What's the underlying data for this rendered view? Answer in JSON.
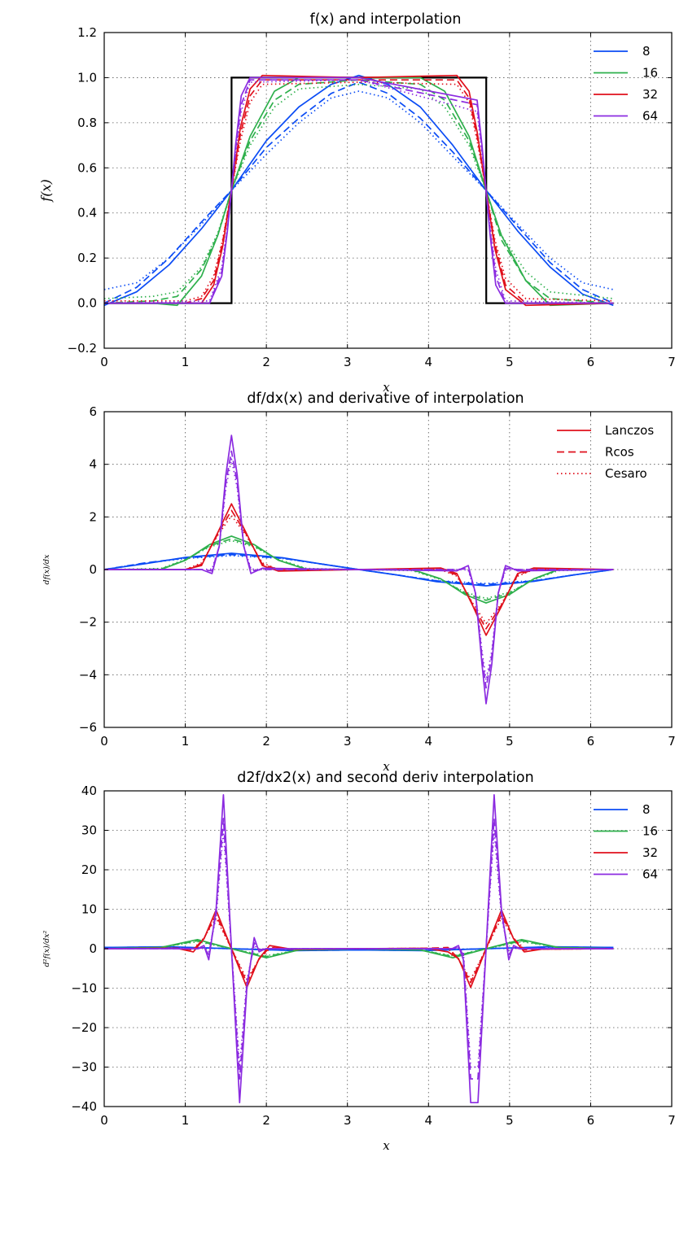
{
  "chart_data": [
    {
      "type": "line",
      "title": "f(x) and interpolation",
      "xlabel": "x",
      "ylabel": "f(x)",
      "xlim": [
        0,
        7
      ],
      "ylim": [
        -0.2,
        1.2
      ],
      "xticks": [
        "0",
        "1",
        "2",
        "3",
        "4",
        "5",
        "6",
        "7"
      ],
      "yticks": [
        "−0.2",
        "0.0",
        "0.2",
        "0.4",
        "0.6",
        "0.8",
        "1.0",
        "1.2"
      ],
      "grid": true,
      "legend": {
        "position": "top-right",
        "entries": [
          "8",
          "16",
          "32",
          "64"
        ]
      },
      "exact": {
        "color": "#000000",
        "x": [
          0,
          1.571,
          1.571,
          4.712,
          4.712,
          6.283
        ],
        "y": [
          0,
          0,
          1,
          1,
          0,
          0
        ]
      },
      "series": [
        {
          "name": "8",
          "color": "#0b4cf5",
          "x": [
            0,
            0.4,
            0.8,
            1.2,
            1.57,
            2.0,
            2.4,
            2.8,
            3.14,
            3.5,
            3.9,
            4.3,
            4.71,
            5.1,
            5.5,
            5.9,
            6.28
          ],
          "lanczos": [
            -0.01,
            0.05,
            0.17,
            0.33,
            0.5,
            0.72,
            0.87,
            0.97,
            1.01,
            0.97,
            0.87,
            0.7,
            0.5,
            0.32,
            0.16,
            0.04,
            -0.01
          ],
          "rcos": [
            0.0,
            0.07,
            0.2,
            0.36,
            0.5,
            0.69,
            0.82,
            0.93,
            0.98,
            0.93,
            0.82,
            0.67,
            0.5,
            0.34,
            0.18,
            0.06,
            0.0
          ],
          "cesaro": [
            0.06,
            0.09,
            0.2,
            0.35,
            0.5,
            0.66,
            0.8,
            0.91,
            0.94,
            0.91,
            0.8,
            0.65,
            0.5,
            0.35,
            0.2,
            0.09,
            0.06
          ]
        },
        {
          "name": "16",
          "color": "#2eb04c",
          "x": [
            0,
            0.6,
            0.9,
            1.2,
            1.4,
            1.57,
            1.8,
            2.1,
            2.4,
            3.14,
            3.9,
            4.2,
            4.5,
            4.71,
            4.9,
            5.2,
            5.5,
            6.28
          ],
          "lanczos": [
            0.0,
            0.0,
            -0.01,
            0.12,
            0.3,
            0.5,
            0.74,
            0.94,
            1.0,
            1.0,
            1.0,
            0.94,
            0.74,
            0.5,
            0.3,
            0.1,
            -0.01,
            0.0
          ],
          "rcos": [
            0.0,
            0.01,
            0.03,
            0.15,
            0.3,
            0.5,
            0.72,
            0.9,
            0.97,
            0.99,
            0.97,
            0.9,
            0.72,
            0.5,
            0.28,
            0.1,
            0.02,
            0.0
          ],
          "cesaro": [
            0.02,
            0.03,
            0.05,
            0.16,
            0.31,
            0.5,
            0.7,
            0.87,
            0.95,
            0.97,
            0.95,
            0.87,
            0.7,
            0.5,
            0.3,
            0.14,
            0.05,
            0.02
          ]
        },
        {
          "name": "32",
          "color": "#e0101c",
          "x": [
            0,
            1.0,
            1.2,
            1.35,
            1.46,
            1.57,
            1.68,
            1.8,
            1.95,
            3.14,
            4.35,
            4.5,
            4.6,
            4.71,
            4.82,
            4.95,
            5.2,
            6.28
          ],
          "lanczos": [
            0.0,
            0.0,
            0.0,
            0.08,
            0.25,
            0.5,
            0.78,
            0.95,
            1.01,
            1.0,
            1.01,
            0.94,
            0.76,
            0.5,
            0.24,
            0.06,
            -0.01,
            0.0
          ],
          "rcos": [
            0.0,
            0.0,
            0.02,
            0.1,
            0.27,
            0.5,
            0.75,
            0.92,
            0.99,
            0.99,
            0.99,
            0.91,
            0.74,
            0.5,
            0.26,
            0.08,
            0.0,
            0.0
          ],
          "cesaro": [
            0.01,
            0.01,
            0.03,
            0.12,
            0.28,
            0.5,
            0.72,
            0.89,
            0.97,
            0.98,
            0.97,
            0.89,
            0.72,
            0.5,
            0.28,
            0.11,
            0.02,
            0.01
          ]
        },
        {
          "name": "64",
          "color": "#8b2be0",
          "x": [
            0,
            1.3,
            1.45,
            1.52,
            1.57,
            1.62,
            1.69,
            1.8,
            3.14,
            4.6,
            4.66,
            4.71,
            4.76,
            4.83,
            4.95,
            6.28
          ],
          "lanczos": [
            0.0,
            0.0,
            0.12,
            0.32,
            0.5,
            0.7,
            0.92,
            1.0,
            1.0,
            0.9,
            0.7,
            0.5,
            0.3,
            0.08,
            0.0,
            0.0
          ],
          "rcos": [
            0.0,
            0.0,
            0.14,
            0.33,
            0.5,
            0.68,
            0.88,
            0.99,
            0.99,
            0.88,
            0.68,
            0.5,
            0.32,
            0.12,
            0.0,
            0.0
          ],
          "cesaro": [
            0.0,
            0.01,
            0.16,
            0.34,
            0.5,
            0.66,
            0.85,
            0.98,
            0.99,
            0.85,
            0.66,
            0.5,
            0.34,
            0.15,
            0.01,
            0.0
          ]
        }
      ]
    },
    {
      "type": "line",
      "title": "df/dx(x) and derivative of interpolation",
      "xlabel": "x",
      "ylabel": "df(x)/dx",
      "xlim": [
        0,
        7
      ],
      "ylim": [
        -6,
        6
      ],
      "xticks": [
        "0",
        "1",
        "2",
        "3",
        "4",
        "5",
        "6",
        "7"
      ],
      "yticks": [
        "−6",
        "−4",
        "−2",
        "0",
        "2",
        "4",
        "6"
      ],
      "grid": true,
      "legend": {
        "position": "top-right",
        "entries": [
          "Lanczos",
          "Rcos",
          "Cesaro"
        ],
        "color": "#e0101c"
      },
      "series": [
        {
          "name": "8",
          "color": "#0b4cf5",
          "x": [
            0,
            0.5,
            1.0,
            1.57,
            2.2,
            2.7,
            3.14,
            3.6,
            4.1,
            4.71,
            5.3,
            5.8,
            6.28
          ],
          "lanczos": [
            0.0,
            0.22,
            0.46,
            0.62,
            0.45,
            0.2,
            0.0,
            -0.2,
            -0.46,
            -0.62,
            -0.45,
            -0.2,
            0.0
          ],
          "rcos": [
            0.0,
            0.25,
            0.44,
            0.57,
            0.43,
            0.2,
            0.0,
            -0.2,
            -0.43,
            -0.57,
            -0.43,
            -0.2,
            0.0
          ],
          "cesaro": [
            0.0,
            0.24,
            0.42,
            0.53,
            0.42,
            0.2,
            0.0,
            -0.2,
            -0.42,
            -0.53,
            -0.42,
            -0.2,
            0.0
          ]
        },
        {
          "name": "16",
          "color": "#2eb04c",
          "x": [
            0,
            0.7,
            1.0,
            1.3,
            1.57,
            1.85,
            2.15,
            2.5,
            3.14,
            3.8,
            4.15,
            4.45,
            4.71,
            5.0,
            5.3,
            5.6,
            6.28
          ],
          "lanczos": [
            0.0,
            0.0,
            0.35,
            0.95,
            1.27,
            0.95,
            0.35,
            0.0,
            0.0,
            0.0,
            -0.35,
            -0.95,
            -1.27,
            -0.95,
            -0.35,
            0.0,
            0.0
          ],
          "rcos": [
            0.0,
            0.02,
            0.36,
            0.9,
            1.17,
            0.9,
            0.36,
            0.02,
            0.0,
            -0.02,
            -0.36,
            -0.9,
            -1.17,
            -0.9,
            -0.36,
            -0.02,
            0.0
          ],
          "cesaro": [
            0.0,
            0.04,
            0.38,
            0.86,
            1.1,
            0.86,
            0.38,
            0.04,
            0.0,
            -0.04,
            -0.38,
            -0.86,
            -1.1,
            -0.86,
            -0.38,
            -0.04,
            0.0
          ]
        },
        {
          "name": "32",
          "color": "#e0101c",
          "x": [
            0,
            1.0,
            1.2,
            1.4,
            1.57,
            1.75,
            1.95,
            2.15,
            3.14,
            4.15,
            4.35,
            4.55,
            4.71,
            4.9,
            5.1,
            5.3,
            6.28
          ],
          "lanczos": [
            0.0,
            0.0,
            0.15,
            1.4,
            2.5,
            1.4,
            0.15,
            -0.06,
            0.0,
            0.06,
            -0.15,
            -1.4,
            -2.5,
            -1.4,
            -0.15,
            0.06,
            0.0
          ],
          "rcos": [
            0.0,
            0.0,
            0.2,
            1.35,
            2.25,
            1.35,
            0.2,
            0.0,
            0.0,
            0.0,
            -0.2,
            -1.35,
            -2.25,
            -1.35,
            -0.2,
            0.0,
            0.0
          ],
          "cesaro": [
            0.0,
            0.0,
            0.25,
            1.3,
            2.05,
            1.3,
            0.25,
            0.0,
            0.0,
            0.0,
            -0.25,
            -1.3,
            -2.05,
            -1.3,
            -0.25,
            0.0,
            0.0
          ]
        },
        {
          "name": "64",
          "color": "#8b2be0",
          "x": [
            0,
            1.2,
            1.33,
            1.42,
            1.5,
            1.57,
            1.64,
            1.72,
            1.81,
            1.95,
            3.14,
            4.35,
            4.49,
            4.58,
            4.66,
            4.71,
            4.78,
            4.86,
            4.95,
            5.1,
            6.28
          ],
          "lanczos": [
            0.0,
            0.0,
            -0.15,
            0.9,
            3.6,
            5.1,
            3.6,
            0.9,
            -0.15,
            0.05,
            0.0,
            -0.05,
            0.15,
            -0.9,
            -3.6,
            -5.1,
            -3.6,
            -0.9,
            0.15,
            -0.05,
            0.0
          ],
          "rcos": [
            0.0,
            0.0,
            -0.05,
            0.9,
            3.3,
            4.5,
            3.3,
            0.9,
            -0.05,
            0.0,
            0.0,
            0.0,
            0.05,
            -0.9,
            -3.3,
            -4.5,
            -3.3,
            -0.9,
            0.05,
            0.0,
            0.0
          ],
          "cesaro": [
            0.0,
            0.0,
            0.02,
            0.9,
            3.1,
            4.2,
            3.1,
            0.9,
            0.02,
            0.0,
            0.0,
            0.0,
            -0.02,
            -0.9,
            -3.1,
            -4.2,
            -3.1,
            -0.9,
            -0.02,
            0.0,
            0.0
          ]
        }
      ]
    },
    {
      "type": "line",
      "title": "d2f/dx2(x) and second deriv interpolation",
      "xlabel": "x",
      "ylabel": "d²f(x)/dx²",
      "xlim": [
        0,
        7
      ],
      "ylim": [
        -40,
        40
      ],
      "xticks": [
        "0",
        "1",
        "2",
        "3",
        "4",
        "5",
        "6",
        "7"
      ],
      "yticks": [
        "−40",
        "−30",
        "−20",
        "−10",
        "0",
        "10",
        "20",
        "30",
        "40"
      ],
      "grid": true,
      "legend": {
        "position": "top-right",
        "entries": [
          "8",
          "16",
          "32",
          "64"
        ]
      },
      "series": [
        {
          "name": "8",
          "color": "#0b4cf5",
          "x": [
            0,
            0.8,
            1.57,
            2.36,
            3.14,
            3.93,
            4.71,
            5.5,
            6.28
          ],
          "lanczos": [
            0.3,
            0.5,
            0.0,
            -0.5,
            -0.3,
            -0.5,
            0.0,
            0.5,
            0.3
          ],
          "rcos": [
            0.3,
            0.45,
            0.0,
            -0.45,
            -0.3,
            -0.45,
            0.0,
            0.45,
            0.3
          ],
          "cesaro": [
            0.3,
            0.4,
            0.0,
            -0.4,
            -0.3,
            -0.4,
            0.0,
            0.4,
            0.3
          ]
        },
        {
          "name": "16",
          "color": "#2eb04c",
          "x": [
            0,
            0.7,
            1.15,
            1.57,
            2.0,
            2.4,
            3.14,
            3.9,
            4.3,
            4.71,
            5.15,
            5.6,
            6.28
          ],
          "lanczos": [
            0.0,
            0.3,
            2.3,
            0.0,
            -2.3,
            -0.3,
            0.0,
            -0.3,
            -2.3,
            0.0,
            2.3,
            0.3,
            0.0
          ],
          "rcos": [
            0.0,
            0.3,
            2.0,
            0.0,
            -2.0,
            -0.3,
            0.0,
            -0.3,
            -2.0,
            0.0,
            2.0,
            0.3,
            0.0
          ],
          "cesaro": [
            0.0,
            0.3,
            1.8,
            0.0,
            -1.8,
            -0.3,
            0.0,
            -0.3,
            -1.8,
            0.0,
            1.8,
            0.3,
            0.0
          ]
        },
        {
          "name": "32",
          "color": "#e0101c",
          "x": [
            0,
            0.9,
            1.1,
            1.23,
            1.38,
            1.57,
            1.76,
            1.91,
            2.04,
            2.3,
            3.14,
            3.98,
            4.24,
            4.37,
            4.52,
            4.71,
            4.9,
            5.05,
            5.18,
            5.4,
            6.28
          ],
          "lanczos": [
            0.0,
            0.1,
            -0.8,
            2.5,
            9.8,
            0.0,
            -9.8,
            -2.5,
            0.8,
            -0.1,
            0.0,
            0.1,
            -0.8,
            -2.5,
            -9.8,
            0.0,
            9.8,
            2.5,
            -0.8,
            -0.1,
            0.0
          ],
          "rcos": [
            0.0,
            0.1,
            -0.3,
            2.6,
            8.6,
            0.0,
            -8.6,
            -2.6,
            0.3,
            -0.1,
            0.0,
            0.1,
            0.3,
            -2.6,
            -8.6,
            0.0,
            8.6,
            2.6,
            -0.3,
            -0.1,
            0.0
          ],
          "cesaro": [
            0.0,
            0.1,
            0.0,
            2.7,
            7.8,
            0.0,
            -7.8,
            -2.7,
            0.0,
            -0.1,
            0.0,
            0.1,
            0.0,
            -2.7,
            -7.8,
            0.0,
            7.8,
            2.7,
            0.0,
            -0.1,
            0.0
          ]
        },
        {
          "name": "64",
          "color": "#8b2be0",
          "x": [
            0,
            1.15,
            1.23,
            1.29,
            1.38,
            1.47,
            1.57,
            1.67,
            1.76,
            1.85,
            1.91,
            1.99,
            2.1,
            3.14,
            4.18,
            4.29,
            4.37,
            4.43,
            4.52,
            4.61,
            4.71,
            4.81,
            4.9,
            4.99,
            5.05,
            5.13,
            5.25,
            6.28
          ],
          "lanczos": [
            0.0,
            0.0,
            0.8,
            -2.8,
            10.0,
            39.0,
            0.0,
            -39.0,
            -10.0,
            2.8,
            -0.8,
            0.0,
            0.0,
            0.0,
            0.0,
            0.0,
            0.8,
            -2.8,
            -39.0,
            -39.0,
            0.0,
            39.0,
            10.0,
            -2.8,
            0.8,
            0.0,
            0.0,
            0.0
          ],
          "rcos": [
            0.0,
            0.0,
            0.3,
            -1.5,
            9.0,
            33.0,
            0.0,
            -33.0,
            -9.0,
            1.5,
            -0.3,
            0.0,
            0.0,
            0.0,
            0.0,
            0.0,
            0.3,
            -1.5,
            -33.0,
            -33.0,
            0.0,
            33.0,
            9.0,
            -1.5,
            0.3,
            0.0,
            0.0,
            0.0
          ],
          "cesaro": [
            0.0,
            0.0,
            0.2,
            -0.8,
            8.0,
            30.0,
            0.0,
            -30.0,
            -8.0,
            0.8,
            -0.2,
            0.0,
            0.0,
            0.0,
            0.0,
            0.0,
            0.2,
            -0.8,
            -30.0,
            -30.0,
            0.0,
            30.0,
            8.0,
            -0.8,
            0.2,
            0.0,
            0.0,
            0.0
          ]
        }
      ]
    }
  ]
}
